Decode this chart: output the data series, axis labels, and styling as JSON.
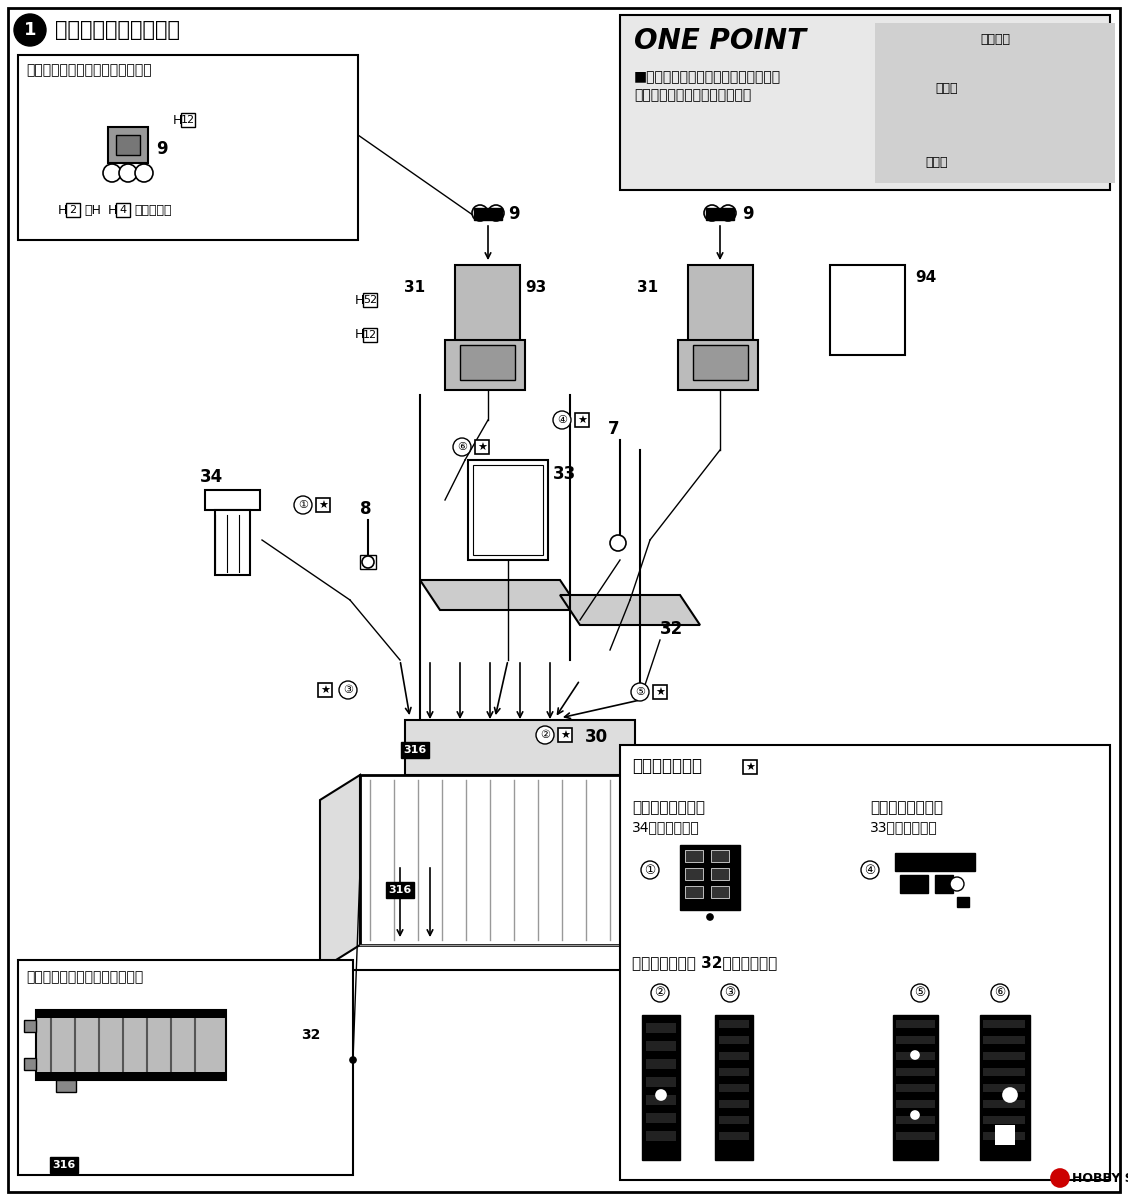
{
  "bg_color": "#ffffff",
  "title_text": "コクピットの組み立て",
  "one_point_title": "ONE POINT",
  "one_point_text1": "■ゲート（ランナーと部品の接合部）",
  "one_point_text2": "をきれいに取り去りましょう。",
  "runner_label": "ランナー",
  "gate_label": "ゲート",
  "parts_label": "バーツ",
  "face_curtain_box_title": "フェイスカーテンハンドルの塗装",
  "cockpit_floor_title": "コックピットフロア下面の塗装",
  "decal_title": "計器盤デカール",
  "front_panel": "【前側インバネ】",
  "front_panel_note": "34に貴ります。",
  "rear_panel": "【後側インバネ】",
  "rear_panel_note": "33に貴ります。",
  "cockpit_panel_text": "【コクピット】 32に貴ります。",
  "hobby_search": "HOBBY SEARCH"
}
